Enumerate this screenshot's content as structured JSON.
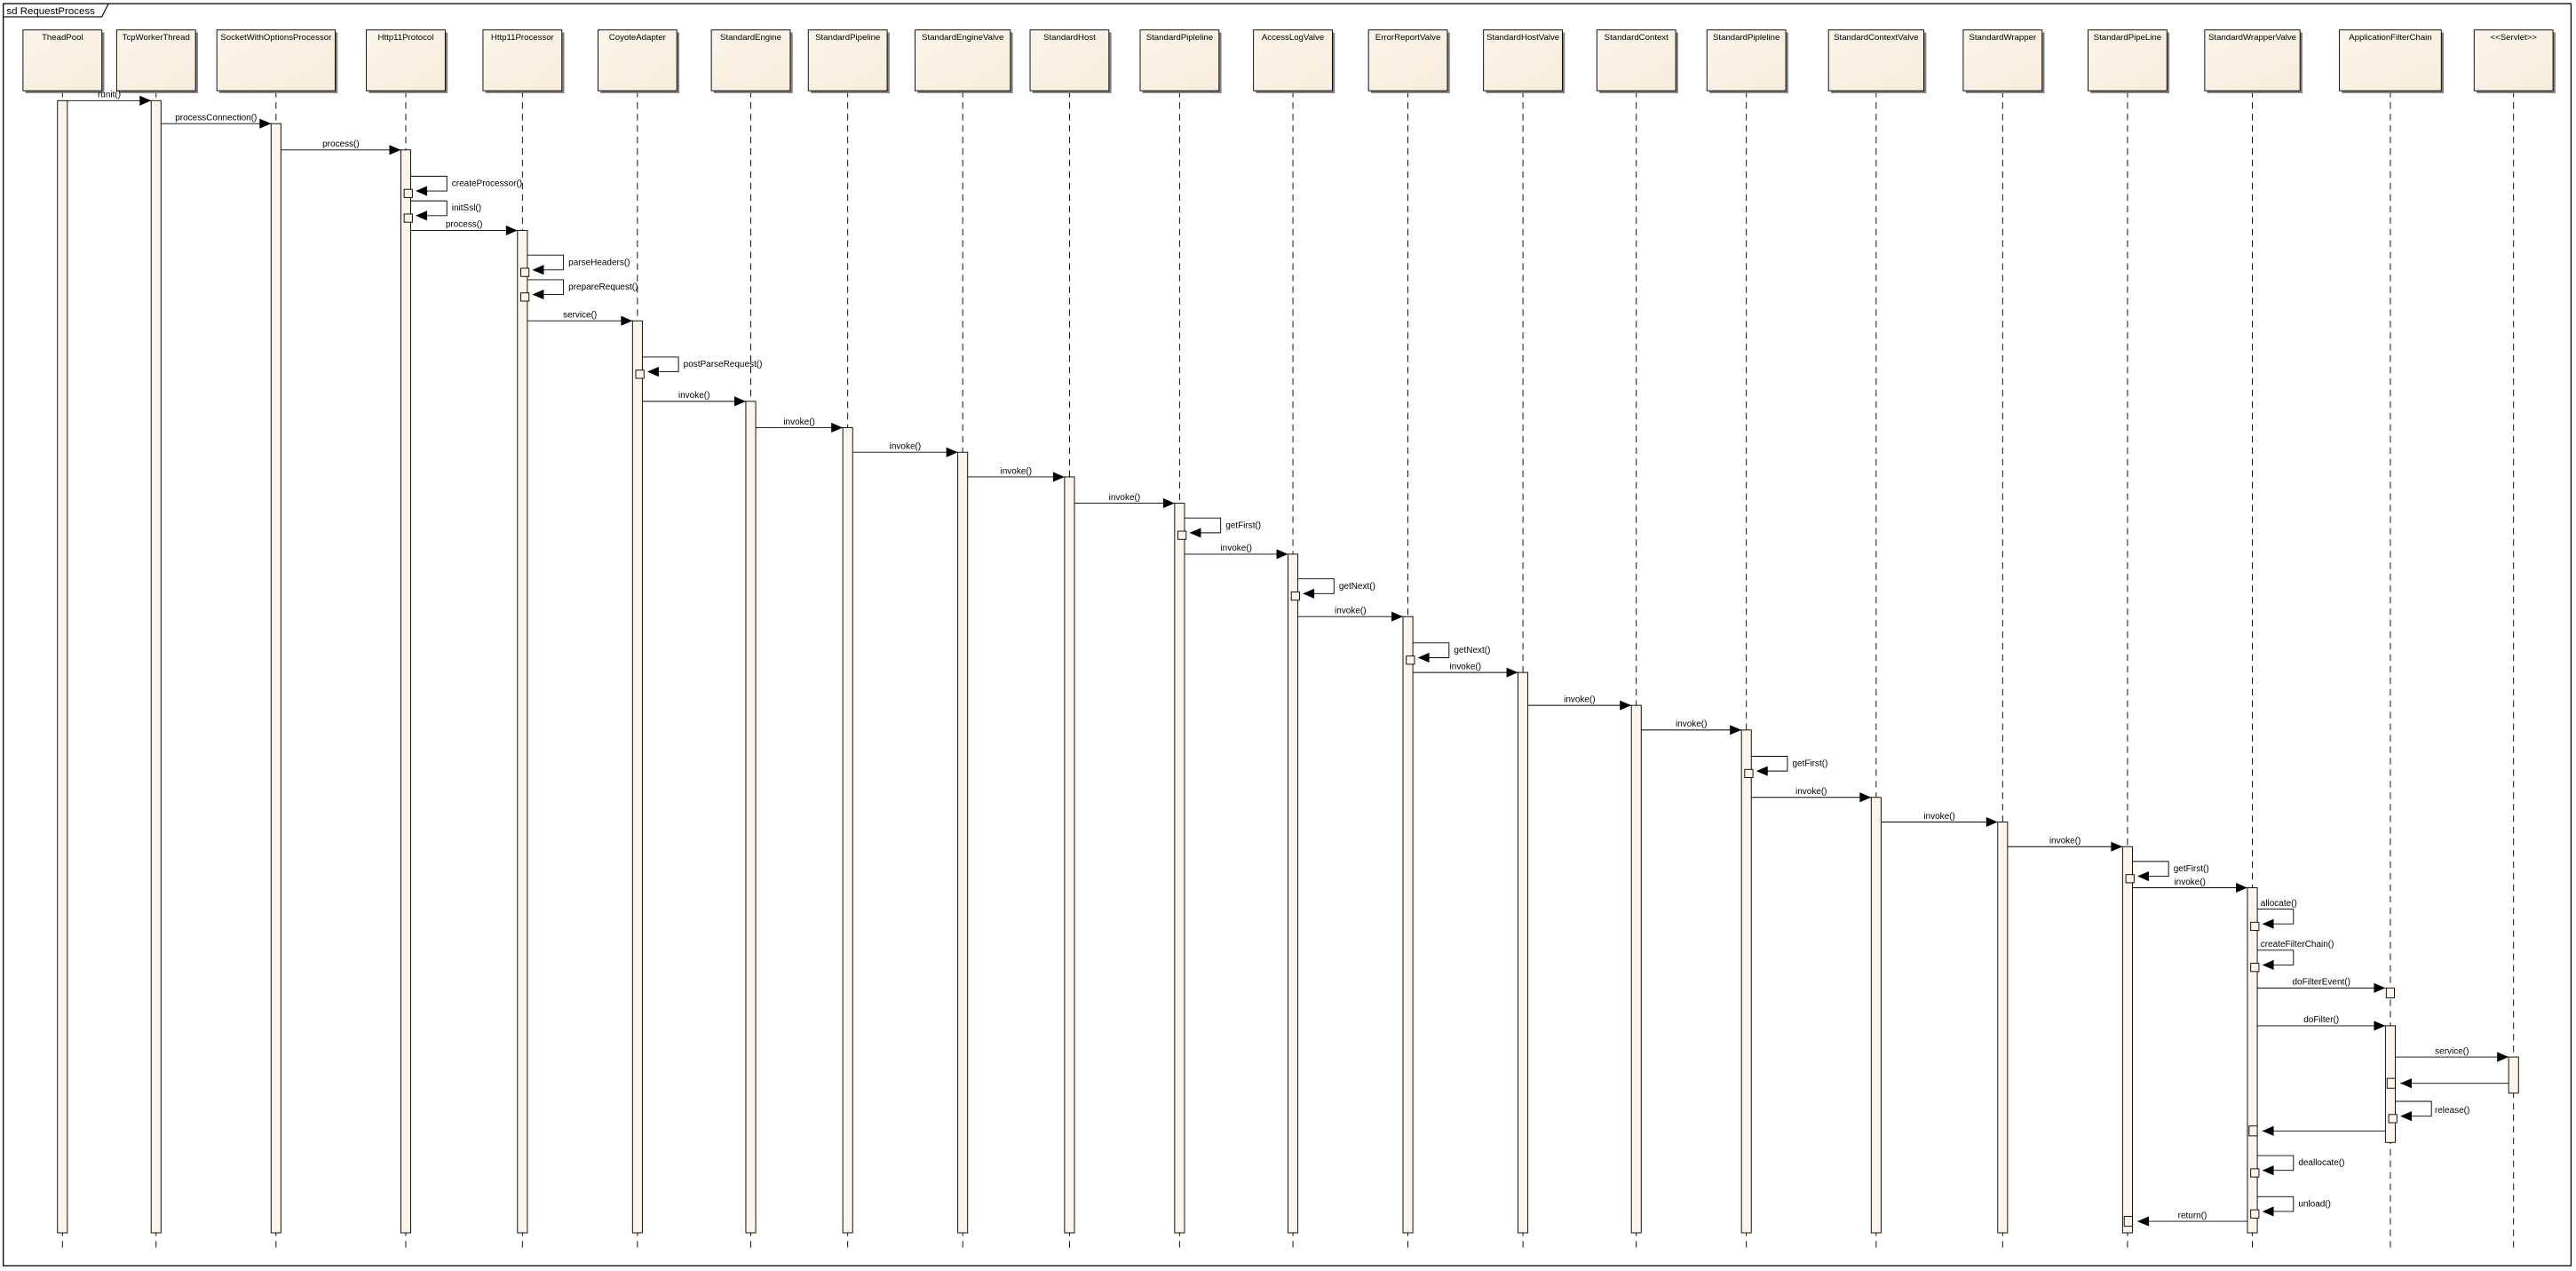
{
  "diagram": {
    "frame_title": "sd RequestProcess",
    "colors": {
      "box_fill": "#f7ecdc",
      "box_fill_light": "#fdf5ea",
      "line": "#000000",
      "shadow": "#808080"
    },
    "participants": [
      "TheadPool",
      "TcpWorkerThread",
      "SocketWithOptionsProcessor",
      "Http11Protocol",
      "Http11Processor",
      "CoyoteAdapter",
      "StandardEngine",
      "StandardPipeline",
      "StandardEngineValve",
      "StandardHost",
      "StandardPipleline",
      "AccessLogValve",
      "ErrorReportValve",
      "StandardHostValve",
      "StandardContext",
      "StandardPipleline",
      "StandardContextValve",
      "StandardWrapper",
      "StandardPipeLine",
      "StandardWrapperValve",
      "ApplicationFilterChain",
      "<<Servlet>>"
    ],
    "messages": [
      {
        "from": 0,
        "to": 1,
        "label": "runit()",
        "kind": "call"
      },
      {
        "from": 1,
        "to": 2,
        "label": "processConnection()",
        "kind": "call"
      },
      {
        "from": 2,
        "to": 3,
        "label": "process()",
        "kind": "call"
      },
      {
        "from": 3,
        "to": 3,
        "label": "createProcessor()",
        "kind": "self"
      },
      {
        "from": 3,
        "to": 3,
        "label": "initSsl()",
        "kind": "self"
      },
      {
        "from": 3,
        "to": 4,
        "label": "process()",
        "kind": "call"
      },
      {
        "from": 4,
        "to": 4,
        "label": "parseHeaders()",
        "kind": "self"
      },
      {
        "from": 4,
        "to": 4,
        "label": "prepareRequest()",
        "kind": "self"
      },
      {
        "from": 4,
        "to": 5,
        "label": "service()",
        "kind": "call"
      },
      {
        "from": 5,
        "to": 5,
        "label": "postParseRequest()",
        "kind": "self"
      },
      {
        "from": 5,
        "to": 6,
        "label": "invoke()",
        "kind": "call"
      },
      {
        "from": 6,
        "to": 7,
        "label": "invoke()",
        "kind": "call"
      },
      {
        "from": 7,
        "to": 8,
        "label": "invoke()",
        "kind": "call"
      },
      {
        "from": 8,
        "to": 9,
        "label": "invoke()",
        "kind": "call"
      },
      {
        "from": 9,
        "to": 10,
        "label": "invoke()",
        "kind": "call"
      },
      {
        "from": 10,
        "to": 10,
        "label": "getFirst()",
        "kind": "self"
      },
      {
        "from": 10,
        "to": 11,
        "label": "invoke()",
        "kind": "call"
      },
      {
        "from": 11,
        "to": 11,
        "label": "getNext()",
        "kind": "self"
      },
      {
        "from": 11,
        "to": 12,
        "label": "invoke()",
        "kind": "call"
      },
      {
        "from": 12,
        "to": 12,
        "label": "getNext()",
        "kind": "self"
      },
      {
        "from": 12,
        "to": 13,
        "label": "invoke()",
        "kind": "call"
      },
      {
        "from": 13,
        "to": 14,
        "label": "invoke()",
        "kind": "call"
      },
      {
        "from": 14,
        "to": 15,
        "label": "invoke()",
        "kind": "call"
      },
      {
        "from": 15,
        "to": 15,
        "label": "getFirst()",
        "kind": "self"
      },
      {
        "from": 15,
        "to": 16,
        "label": "invoke()",
        "kind": "call"
      },
      {
        "from": 16,
        "to": 17,
        "label": "invoke()",
        "kind": "call"
      },
      {
        "from": 17,
        "to": 18,
        "label": "invoke()",
        "kind": "call"
      },
      {
        "from": 18,
        "to": 18,
        "label": "getFirst()",
        "kind": "self"
      },
      {
        "from": 18,
        "to": 19,
        "label": "invoke()",
        "kind": "call"
      },
      {
        "from": 19,
        "to": 19,
        "label": "allocate()",
        "kind": "self"
      },
      {
        "from": 19,
        "to": 19,
        "label": "createFilterChain()",
        "kind": "self"
      },
      {
        "from": 19,
        "to": 20,
        "label": "doFilterEvent()",
        "kind": "call"
      },
      {
        "from": 19,
        "to": 20,
        "label": "doFilter()",
        "kind": "call"
      },
      {
        "from": 20,
        "to": 21,
        "label": "service()",
        "kind": "call"
      },
      {
        "from": 21,
        "to": 20,
        "label": "",
        "kind": "return"
      },
      {
        "from": 20,
        "to": 20,
        "label": "release()",
        "kind": "self"
      },
      {
        "from": 20,
        "to": 19,
        "label": "",
        "kind": "return"
      },
      {
        "from": 19,
        "to": 19,
        "label": "deallocate()",
        "kind": "self"
      },
      {
        "from": 19,
        "to": 19,
        "label": "unload()",
        "kind": "self"
      },
      {
        "from": 19,
        "to": 18,
        "label": "return()",
        "kind": "return"
      }
    ]
  }
}
